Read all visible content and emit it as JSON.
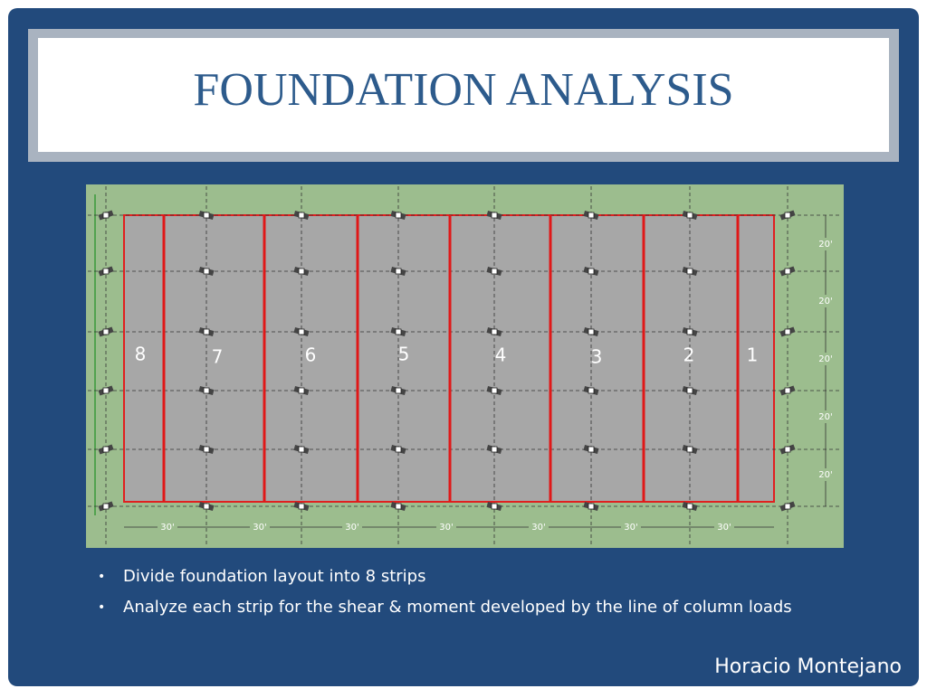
{
  "header": {
    "title": "FOUNDATION ANALYSIS"
  },
  "diagram": {
    "strip_labels": [
      "8",
      "7",
      "6",
      "5",
      "4",
      "3",
      "2",
      "1"
    ],
    "row_dimensions": [
      "20'",
      "20'",
      "20'",
      "20'",
      "20'"
    ],
    "column_dimensions": [
      "30'",
      "30'",
      "30'",
      "30'",
      "30'",
      "30'",
      "30'"
    ]
  },
  "bullets": [
    "Divide foundation layout into 8 strips",
    "Analyze each strip for the shear & moment developed by the line of column loads"
  ],
  "footer": {
    "author": "Horacio Montejano"
  }
}
